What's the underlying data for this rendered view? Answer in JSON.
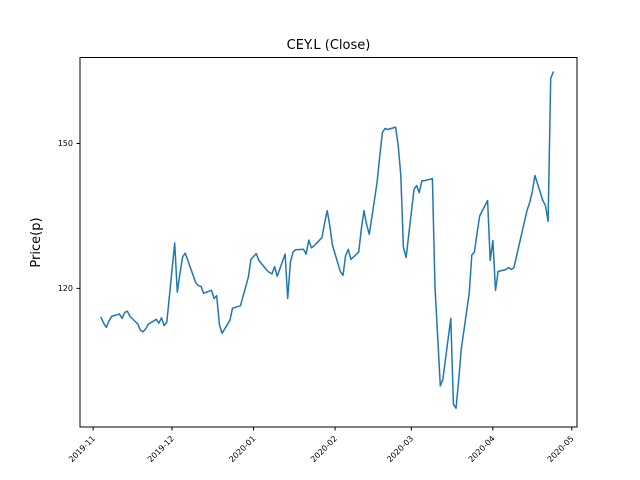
{
  "chart_data": {
    "type": "line",
    "title": "CEY.L (Close)",
    "ylabel": "Price(p)",
    "xlabel": "",
    "grid": false,
    "legend": null,
    "background": "#ffffff",
    "line_color": "#1f77b4",
    "frame_color": "#000000",
    "xlim": [
      "2019-10-27",
      "2020-05-03"
    ],
    "ylim": [
      91.3,
      167.8
    ],
    "x_ticks": [
      {
        "value": "2019-11-01",
        "label": "2019-11"
      },
      {
        "value": "2019-12-01",
        "label": "2019-12"
      },
      {
        "value": "2020-01-01",
        "label": "2020-01"
      },
      {
        "value": "2020-02-01",
        "label": "2020-02"
      },
      {
        "value": "2020-03-01",
        "label": "2020-03"
      },
      {
        "value": "2020-04-01",
        "label": "2020-04"
      },
      {
        "value": "2020-05-01",
        "label": "2020-05"
      }
    ],
    "y_ticks": [
      {
        "value": 120,
        "label": "120"
      },
      {
        "value": 150,
        "label": "150"
      }
    ],
    "series": [
      {
        "name": "Close",
        "dates": [
          "2019-11-04",
          "2019-11-05",
          "2019-11-06",
          "2019-11-07",
          "2019-11-08",
          "2019-11-11",
          "2019-11-12",
          "2019-11-13",
          "2019-11-14",
          "2019-11-15",
          "2019-11-18",
          "2019-11-19",
          "2019-11-20",
          "2019-11-21",
          "2019-11-22",
          "2019-11-25",
          "2019-11-26",
          "2019-11-27",
          "2019-11-28",
          "2019-11-29",
          "2019-12-02",
          "2019-12-03",
          "2019-12-04",
          "2019-12-05",
          "2019-12-06",
          "2019-12-09",
          "2019-12-10",
          "2019-12-11",
          "2019-12-12",
          "2019-12-13",
          "2019-12-16",
          "2019-12-17",
          "2019-12-18",
          "2019-12-19",
          "2019-12-20",
          "2019-12-23",
          "2019-12-24",
          "2019-12-27",
          "2019-12-30",
          "2019-12-31",
          "2020-01-02",
          "2020-01-03",
          "2020-01-06",
          "2020-01-07",
          "2020-01-08",
          "2020-01-09",
          "2020-01-10",
          "2020-01-13",
          "2020-01-14",
          "2020-01-15",
          "2020-01-16",
          "2020-01-17",
          "2020-01-20",
          "2020-01-21",
          "2020-01-22",
          "2020-01-23",
          "2020-01-24",
          "2020-01-27",
          "2020-01-28",
          "2020-01-29",
          "2020-01-30",
          "2020-01-31",
          "2020-02-03",
          "2020-02-04",
          "2020-02-05",
          "2020-02-06",
          "2020-02-07",
          "2020-02-10",
          "2020-02-11",
          "2020-02-12",
          "2020-02-13",
          "2020-02-14",
          "2020-02-17",
          "2020-02-18",
          "2020-02-19",
          "2020-02-20",
          "2020-02-21",
          "2020-02-24",
          "2020-02-25",
          "2020-02-26",
          "2020-02-27",
          "2020-02-28",
          "2020-03-02",
          "2020-03-03",
          "2020-03-04",
          "2020-03-05",
          "2020-03-06",
          "2020-03-09",
          "2020-03-10",
          "2020-03-11",
          "2020-03-12",
          "2020-03-13",
          "2020-03-16",
          "2020-03-17",
          "2020-03-18",
          "2020-03-19",
          "2020-03-20",
          "2020-03-23",
          "2020-03-24",
          "2020-03-25",
          "2020-03-26",
          "2020-03-27",
          "2020-03-30",
          "2020-03-31",
          "2020-04-01",
          "2020-04-02",
          "2020-04-03",
          "2020-04-06",
          "2020-04-07",
          "2020-04-08",
          "2020-04-09",
          "2020-04-14",
          "2020-04-15",
          "2020-04-16",
          "2020-04-17",
          "2020-04-20",
          "2020-04-21",
          "2020-04-22",
          "2020-04-23",
          "2020-04-24"
        ],
        "values": [
          114.0,
          112.8,
          111.9,
          113.2,
          114.2,
          114.7,
          113.8,
          115.0,
          115.3,
          114.2,
          112.6,
          111.3,
          111.0,
          111.6,
          112.6,
          113.6,
          112.8,
          113.9,
          112.3,
          113.0,
          129.4,
          119.2,
          123.0,
          126.5,
          127.3,
          122.7,
          121.2,
          120.6,
          120.4,
          119.0,
          119.6,
          117.9,
          118.5,
          112.5,
          110.7,
          113.4,
          115.9,
          116.4,
          122.3,
          126.0,
          127.2,
          125.8,
          123.8,
          123.3,
          123.0,
          124.5,
          122.5,
          127.1,
          117.9,
          125.4,
          127.5,
          128.0,
          128.1,
          127.1,
          130.0,
          128.4,
          128.8,
          130.5,
          133.5,
          136.1,
          133.0,
          129.0,
          123.5,
          122.7,
          126.8,
          128.1,
          126.0,
          127.5,
          132.4,
          136.1,
          133.2,
          131.2,
          142.0,
          147.5,
          152.3,
          153.1,
          152.9,
          153.4,
          149.6,
          143.4,
          128.5,
          126.4,
          140.5,
          141.3,
          139.8,
          142.3,
          142.3,
          142.7,
          120.2,
          110.3,
          99.8,
          101.2,
          113.8,
          96.0,
          95.2,
          101.0,
          107.5,
          119.0,
          126.9,
          127.5,
          131.5,
          135.0,
          138.2,
          125.8,
          129.9,
          119.6,
          123.5,
          123.9,
          124.3,
          123.9,
          124.3,
          136.1,
          137.8,
          140.0,
          143.4,
          138.2,
          137.2,
          133.9,
          163.5,
          164.8
        ]
      }
    ]
  }
}
